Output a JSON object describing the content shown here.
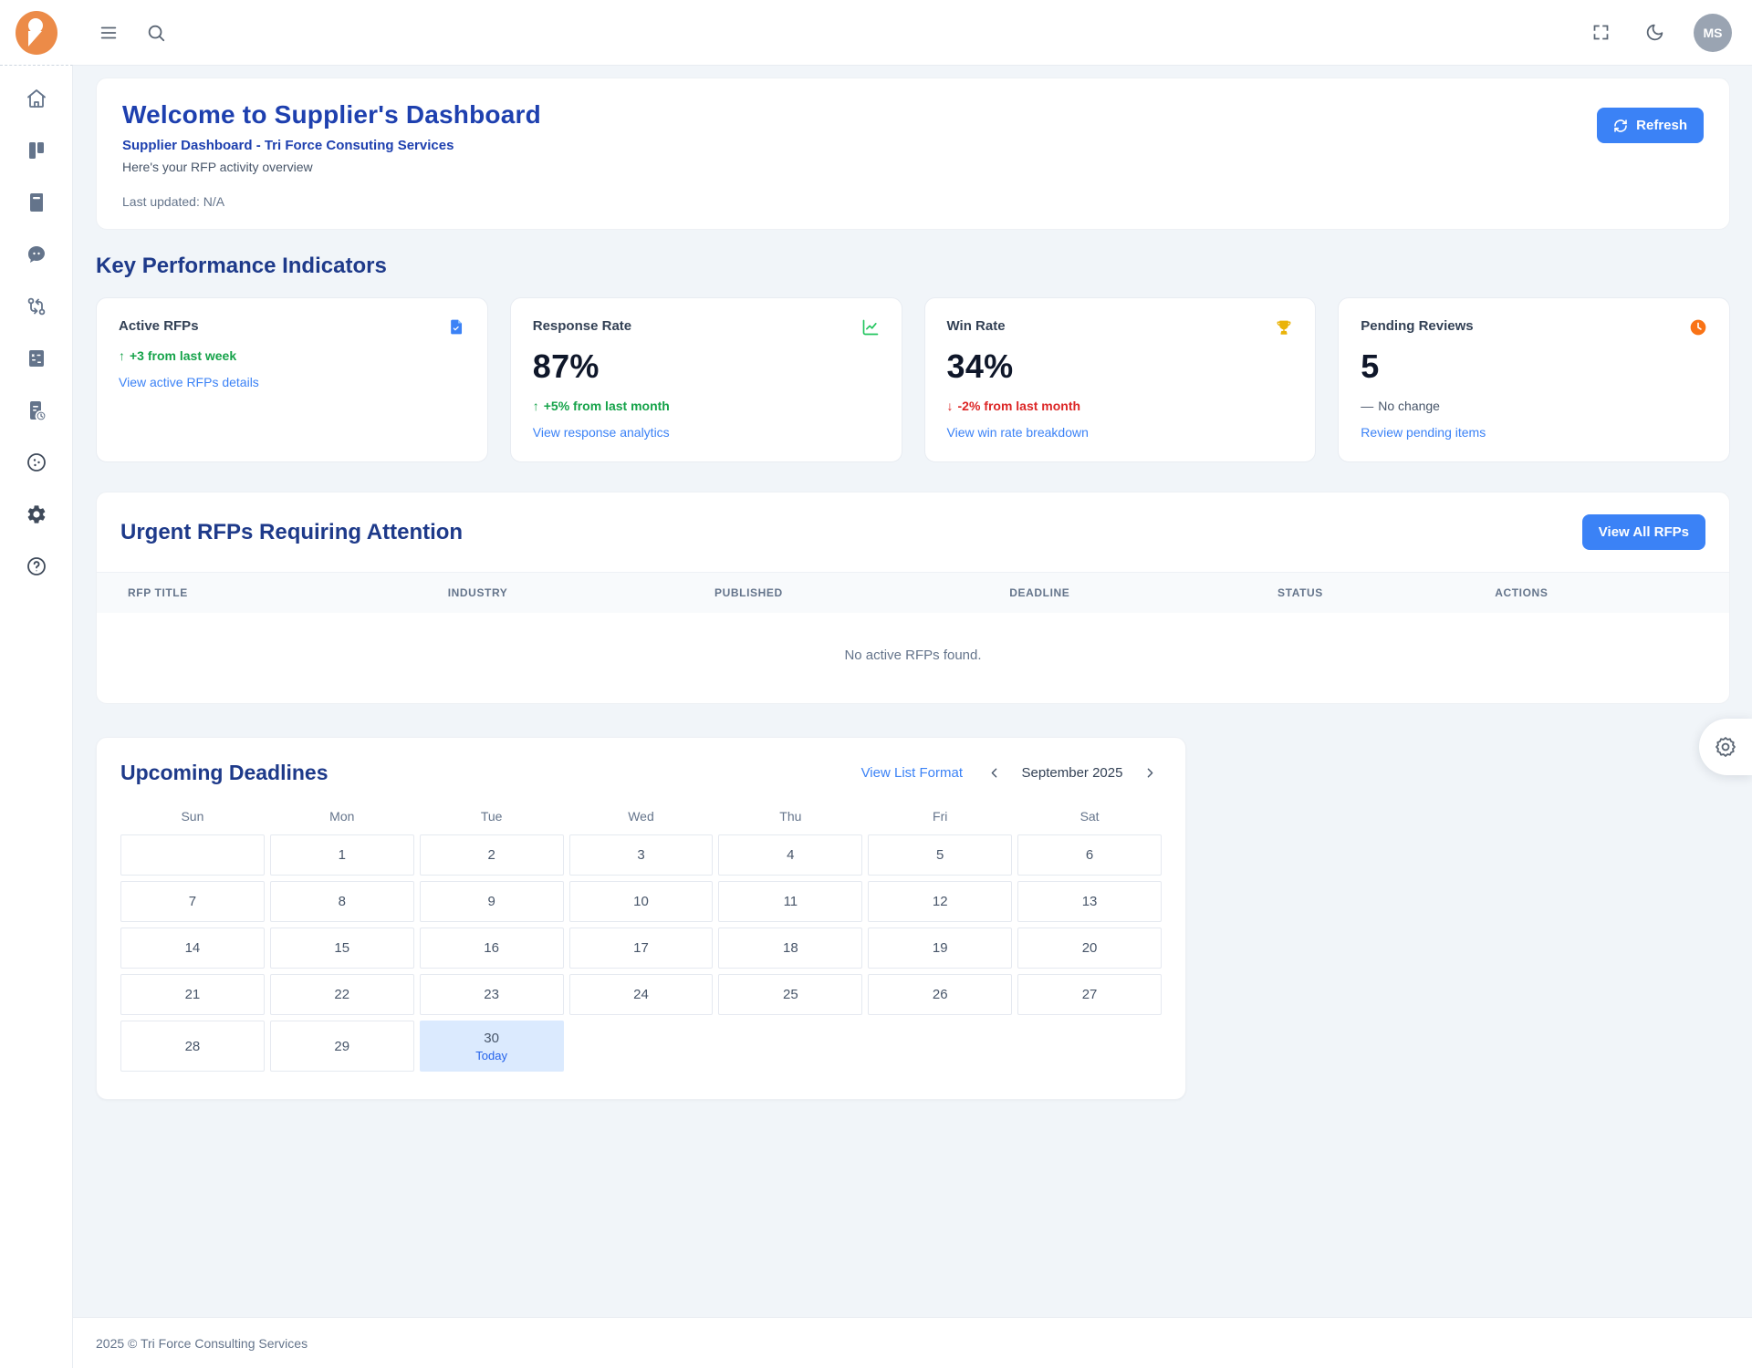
{
  "header": {
    "avatar_initials": "MS"
  },
  "welcome": {
    "title": "Welcome to Supplier's Dashboard",
    "subtitle": "Supplier Dashboard - Tri Force Consuting Services",
    "description": "Here's your RFP activity overview",
    "last_updated": "Last updated: N/A",
    "refresh_label": "Refresh"
  },
  "kpi": {
    "heading": "Key Performance Indicators",
    "cards": [
      {
        "label": "Active RFPs",
        "icon": "file-icon",
        "value": "",
        "arrow": "↑",
        "change": "+3 from last week",
        "direction": "up",
        "link": "View active RFPs details"
      },
      {
        "label": "Response Rate",
        "icon": "chart-line-icon",
        "value": "87%",
        "arrow": "↑",
        "change": "+5% from last month",
        "direction": "up",
        "link": "View response analytics"
      },
      {
        "label": "Win Rate",
        "icon": "trophy-icon",
        "value": "34%",
        "arrow": "↓",
        "change": "-2% from last month",
        "direction": "down",
        "link": "View win rate breakdown"
      },
      {
        "label": "Pending Reviews",
        "icon": "clock-icon",
        "value": "5",
        "arrow": "—",
        "change": "No change",
        "direction": "none",
        "link": "Review pending items"
      }
    ]
  },
  "urgent": {
    "heading": "Urgent RFPs Requiring Attention",
    "view_all_label": "View All RFPs",
    "columns": [
      "RFP Title",
      "Industry",
      "Published",
      "Deadline",
      "Status",
      "Actions"
    ],
    "empty_message": "No active RFPs found."
  },
  "calendar": {
    "heading": "Upcoming Deadlines",
    "view_list_label": "View List Format",
    "month_label": "September 2025",
    "day_headers": [
      "Sun",
      "Mon",
      "Tue",
      "Wed",
      "Thu",
      "Fri",
      "Sat"
    ],
    "weeks": [
      [
        "",
        1,
        2,
        3,
        4,
        5,
        6
      ],
      [
        7,
        8,
        9,
        10,
        11,
        12,
        13
      ],
      [
        14,
        15,
        16,
        17,
        18,
        19,
        20
      ],
      [
        21,
        22,
        23,
        24,
        25,
        26,
        27
      ],
      [
        28,
        29,
        30,
        null,
        null,
        null,
        null
      ]
    ],
    "today": 30,
    "today_label": "Today"
  },
  "footer": {
    "copyright": "2025 © Tri Force Consulting Services"
  },
  "colors": {
    "accent_blue": "#3b82f6",
    "heading_navy": "#1e3a8a",
    "title_blue": "#1e40af",
    "positive_green": "#16a34a",
    "negative_red": "#dc2626",
    "clock_orange": "#f97316",
    "trophy_gold": "#eab308",
    "logo_orange": "#ec8b48",
    "today_bg": "#dbeafe",
    "page_bg": "#f1f5f9"
  }
}
